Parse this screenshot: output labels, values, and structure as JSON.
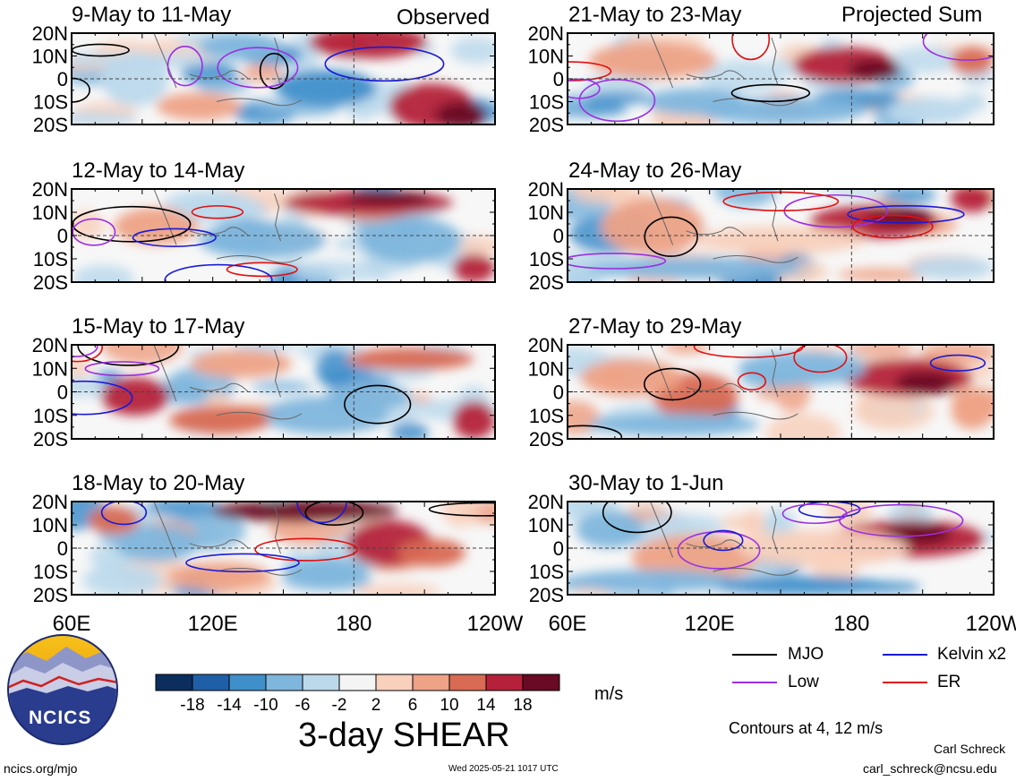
{
  "header": {
    "left_label": "Observed",
    "right_label": "Projected Sum"
  },
  "chart_data": {
    "type": "heatmap",
    "title": "3-day SHEAR",
    "variable_units": "m/s",
    "x_tick_labels": [
      "60E",
      "120E",
      "180",
      "120W"
    ],
    "y_tick_labels": [
      "20N",
      "10N",
      "0",
      "10S",
      "20S"
    ],
    "panels_observed": [
      {
        "period": "9-May to 11-May"
      },
      {
        "period": "12-May to 14-May"
      },
      {
        "period": "15-May to 17-May"
      },
      {
        "period": "18-May to 20-May"
      }
    ],
    "panels_projected": [
      {
        "period": "21-May to 23-May"
      },
      {
        "period": "24-May to 26-May"
      },
      {
        "period": "27-May to 29-May"
      },
      {
        "period": "30-May to 1-Jun"
      }
    ],
    "colorbar": {
      "tick_labels": [
        "-18",
        "-14",
        "-10",
        "-6",
        "-2",
        "2",
        "6",
        "10",
        "14",
        "18"
      ],
      "colors": [
        "#0b2e5e",
        "#1f5fa8",
        "#3f8fcb",
        "#7fb6dd",
        "#bcd9ec",
        "#f4f4f4",
        "#f8d0bc",
        "#eea286",
        "#d96a53",
        "#b5213a",
        "#6a0a24"
      ]
    },
    "legend": [
      {
        "label": "MJO",
        "color": "#000000"
      },
      {
        "label": "Kelvin x2",
        "color": "#1a1ad6"
      },
      {
        "label": "Low",
        "color": "#9b30e0"
      },
      {
        "label": "ER",
        "color": "#e01010"
      }
    ],
    "contours_note": "Contours at 4, 12 m/s"
  },
  "footer": {
    "logo_text": "NCICS",
    "website": "ncics.org/mjo",
    "timestamp": "Wed 2025-05-21 1017 UTC",
    "author": "Carl Schreck",
    "email": "carl_schreck@ncsu.edu"
  }
}
